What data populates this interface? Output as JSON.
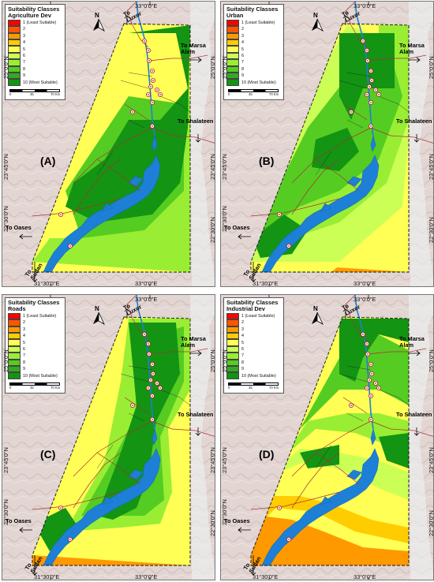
{
  "legend": {
    "heading": "Suitability Classes",
    "classes": [
      {
        "label": "1 (Least Suitable)",
        "color": "#ff0000"
      },
      {
        "label": "2",
        "color": "#ff5500"
      },
      {
        "label": "3",
        "color": "#ff9900"
      },
      {
        "label": "4",
        "color": "#ffcc00"
      },
      {
        "label": "5",
        "color": "#ffff55"
      },
      {
        "label": "6",
        "color": "#ccff55"
      },
      {
        "label": "7",
        "color": "#99ee33"
      },
      {
        "label": "8",
        "color": "#55cc22"
      },
      {
        "label": "9",
        "color": "#33aa22"
      },
      {
        "label": "10 (Most Suitable)",
        "color": "#139413"
      }
    ],
    "scale": [
      "0",
      "35",
      "70 Km"
    ]
  },
  "panels": [
    {
      "letter": "(A)",
      "subtitle": "Agriculture Dev",
      "labels": [
        "Agriculture Dev"
      ]
    },
    {
      "letter": "(B)",
      "subtitle": "Urban",
      "labels": [
        "Urban"
      ]
    },
    {
      "letter": "(C)",
      "subtitle": "Roads",
      "labels": [
        "Roads"
      ]
    },
    {
      "letter": "(D)",
      "subtitle": "Industrial Dev",
      "labels": [
        "Industrial Dev"
      ]
    }
  ],
  "graticule": {
    "lon_left": "31°30'0\"E",
    "lon_right": "33°0'0\"E",
    "lat_top": "25°0'0\"N",
    "lat_mid": "23°45'0\"N",
    "lat_bottom": "22°30'0\"N"
  },
  "destinations": {
    "luxor": "To Luxor",
    "marsa_alam": "To Marsa Alam",
    "shalateen": "To Shalateen",
    "oases": "To Oases",
    "sudan": "To Sudan"
  },
  "north_label": "N"
}
